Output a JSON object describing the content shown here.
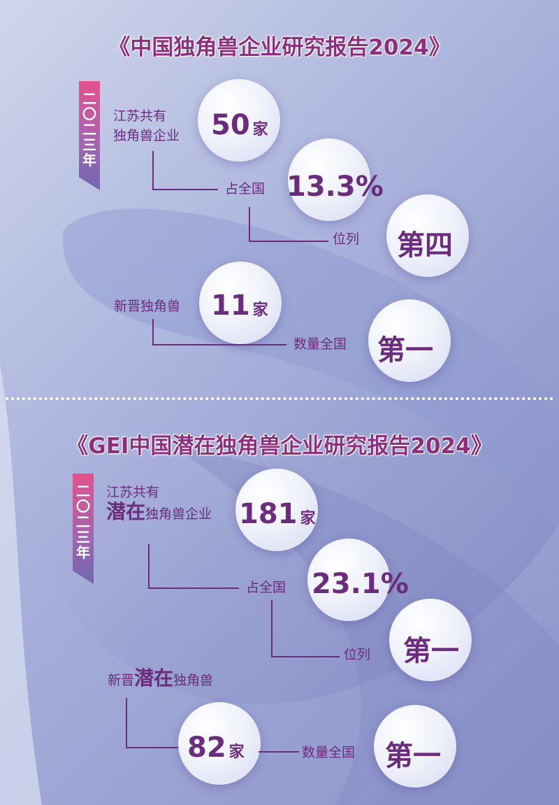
{
  "section1": {
    "title": "《中国独角兽企业研究报告2024》",
    "year": [
      "二",
      "〇",
      "二",
      "三",
      "年"
    ],
    "label1_line1": "江苏共有",
    "label1_line2": "独角兽企业",
    "value1": "50",
    "unit": "家",
    "label2": "占全国",
    "value2": "13.3%",
    "label3": "位列",
    "value3": "第四",
    "label4": "新晋独角兽",
    "value4": "11",
    "label5": "数量全国",
    "value5": "第一"
  },
  "section2": {
    "title": "《GEI中国潜在独角兽企业研究报告2024》",
    "year": [
      "二",
      "〇",
      "二",
      "三",
      "年"
    ],
    "label1_line1": "江苏共有",
    "label1_big": "潜在",
    "label1_rest": "独角兽企业",
    "value1": "181",
    "unit": "家",
    "label2": "占全国",
    "value2": "23.1%",
    "label3": "位列",
    "value3": "第一",
    "label4_pre": "新晋",
    "label4_big": "潜在",
    "label4_post": "独角兽",
    "value4": "82",
    "label5": "数量全国",
    "value5": "第一"
  }
}
